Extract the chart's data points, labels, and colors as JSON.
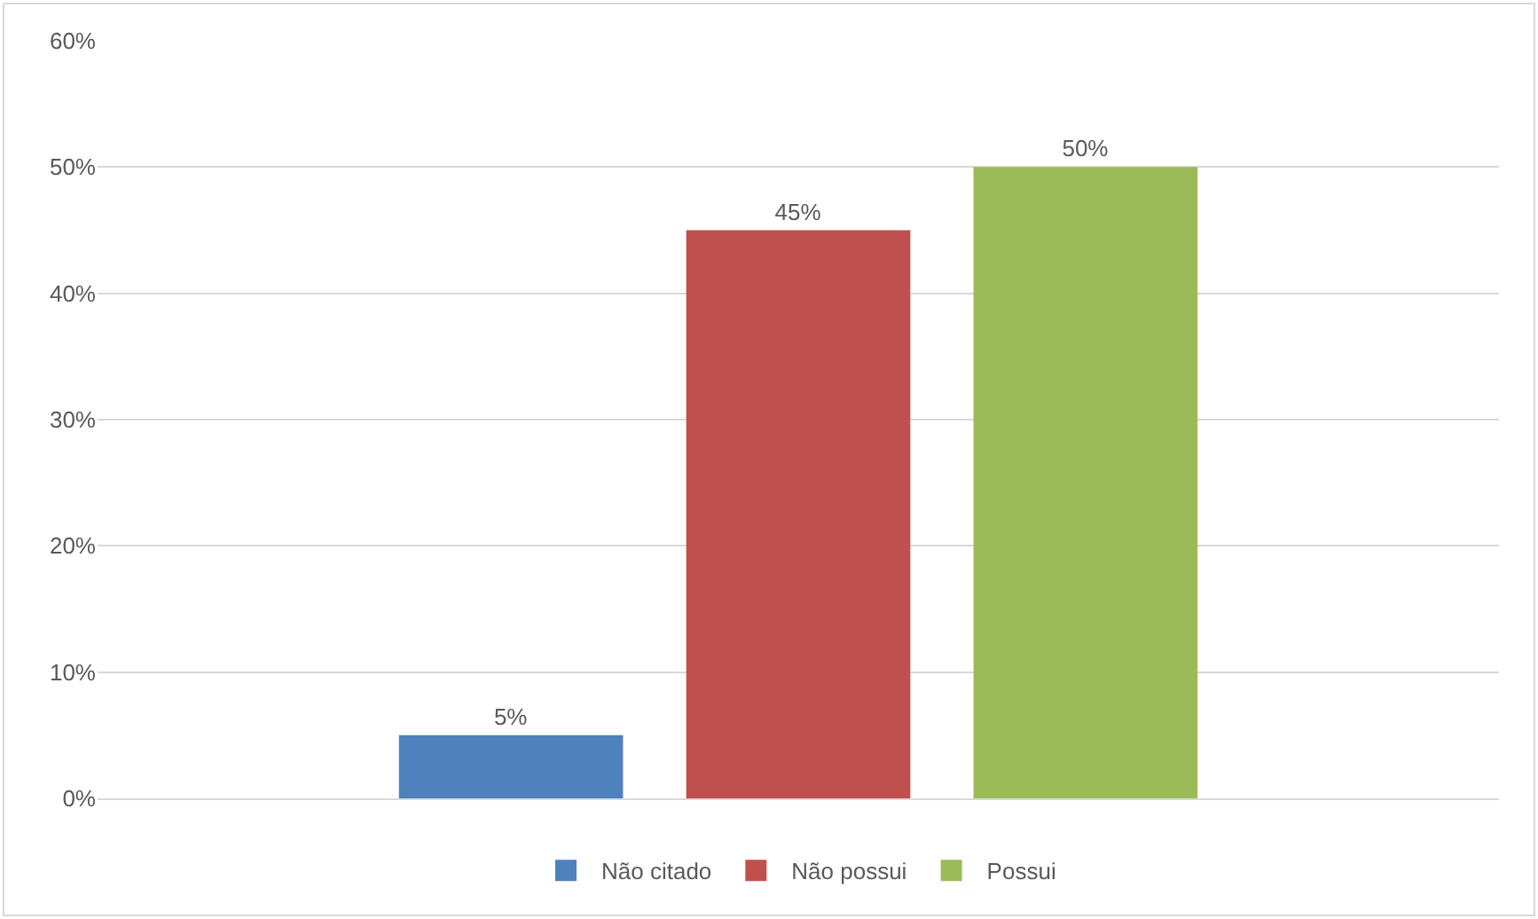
{
  "chart_data": {
    "type": "bar",
    "categories": [
      null
    ],
    "series": [
      {
        "name": "Não citado",
        "color": "#4f81bd",
        "values": [
          5
        ],
        "value_labels": [
          "5%"
        ]
      },
      {
        "name": "Não possui",
        "color": "#c0504d",
        "values": [
          45
        ],
        "value_labels": [
          "45%"
        ]
      },
      {
        "name": "Possui",
        "color": "#9bbb59",
        "values": [
          50
        ],
        "value_labels": [
          "50%"
        ]
      }
    ],
    "ylim": [
      0,
      60
    ],
    "yticks": [
      {
        "value": 0,
        "label": "0%"
      },
      {
        "value": 10,
        "label": "10%"
      },
      {
        "value": 20,
        "label": "20%"
      },
      {
        "value": 30,
        "label": "30%"
      },
      {
        "value": 40,
        "label": "40%"
      },
      {
        "value": 50,
        "label": "50%"
      },
      {
        "value": 60,
        "label": "60%"
      }
    ],
    "grid": "y",
    "legend": "bottom"
  }
}
